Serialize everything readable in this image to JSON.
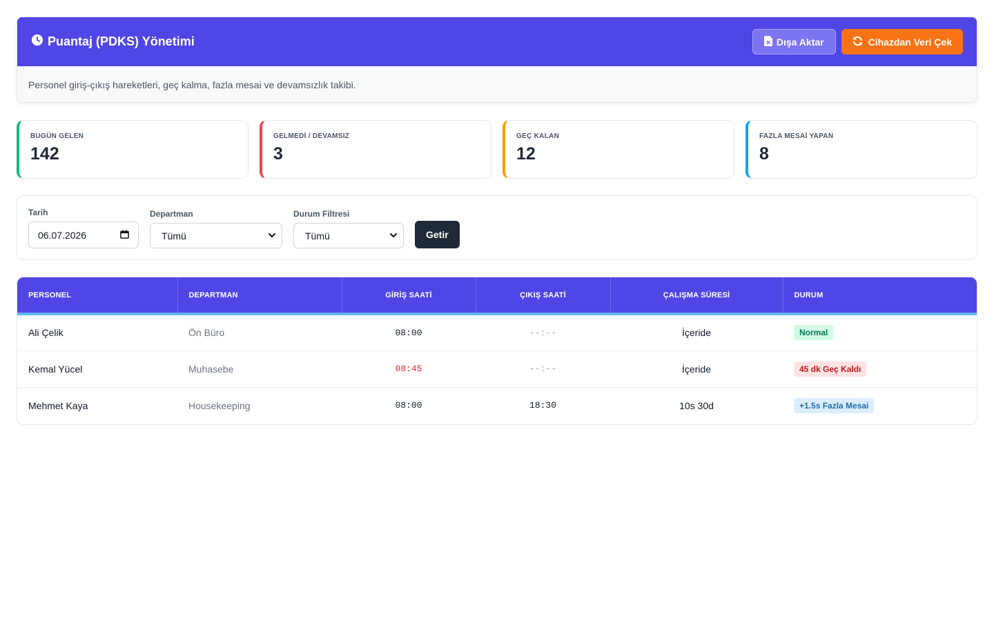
{
  "header": {
    "title": "Puantaj (PDKS) Yönetimi",
    "description": "Personel giriş-çıkış hareketleri, geç kalma, fazla mesai ve devamsızlık takibi.",
    "export_label": "Dışa Aktar",
    "fetch_label": "Cihazdan Veri Çek"
  },
  "stats": [
    {
      "label": "BUGÜN GELEN",
      "value": "142",
      "color": "#10b981"
    },
    {
      "label": "GELMEDİ / DEVAMSIZ",
      "value": "3",
      "color": "#ef4444"
    },
    {
      "label": "GEÇ KALAN",
      "value": "12",
      "color": "#f59e0b"
    },
    {
      "label": "FAZLA MESAİ YAPAN",
      "value": "8",
      "color": "#0ea5e9"
    }
  ],
  "filters": {
    "date_label": "Tarih",
    "date_value": "06.07.2026",
    "department_label": "Departman",
    "department_value": "Tümü",
    "status_label": "Durum Filtresi",
    "status_value": "Tümü",
    "submit_label": "Getir"
  },
  "table": {
    "columns": [
      "PERSONEL",
      "DEPARTMAN",
      "GİRİŞ SAATİ",
      "ÇIKIŞ SAATİ",
      "ÇALIŞMA SÜRESİ",
      "DURUM"
    ],
    "rows": [
      {
        "name": "Ali Çelik",
        "department": "Ön Büro",
        "check_in": "08:00",
        "check_out": "--:--",
        "duration": "İçeride",
        "status": "Normal"
      },
      {
        "name": "Kemal Yücel",
        "department": "Muhasebe",
        "check_in": "08:45",
        "check_out": "--:--",
        "duration": "İçeride",
        "status": "45 dk Geç Kaldı"
      },
      {
        "name": "Mehmet Kaya",
        "department": "Housekeeping",
        "check_in": "08:00",
        "check_out": "18:30",
        "duration": "10s 30d",
        "status": "+1.5s Fazla Mesai"
      }
    ]
  },
  "colors": {
    "primary": "#4f46e5",
    "accent": "#f97316"
  }
}
